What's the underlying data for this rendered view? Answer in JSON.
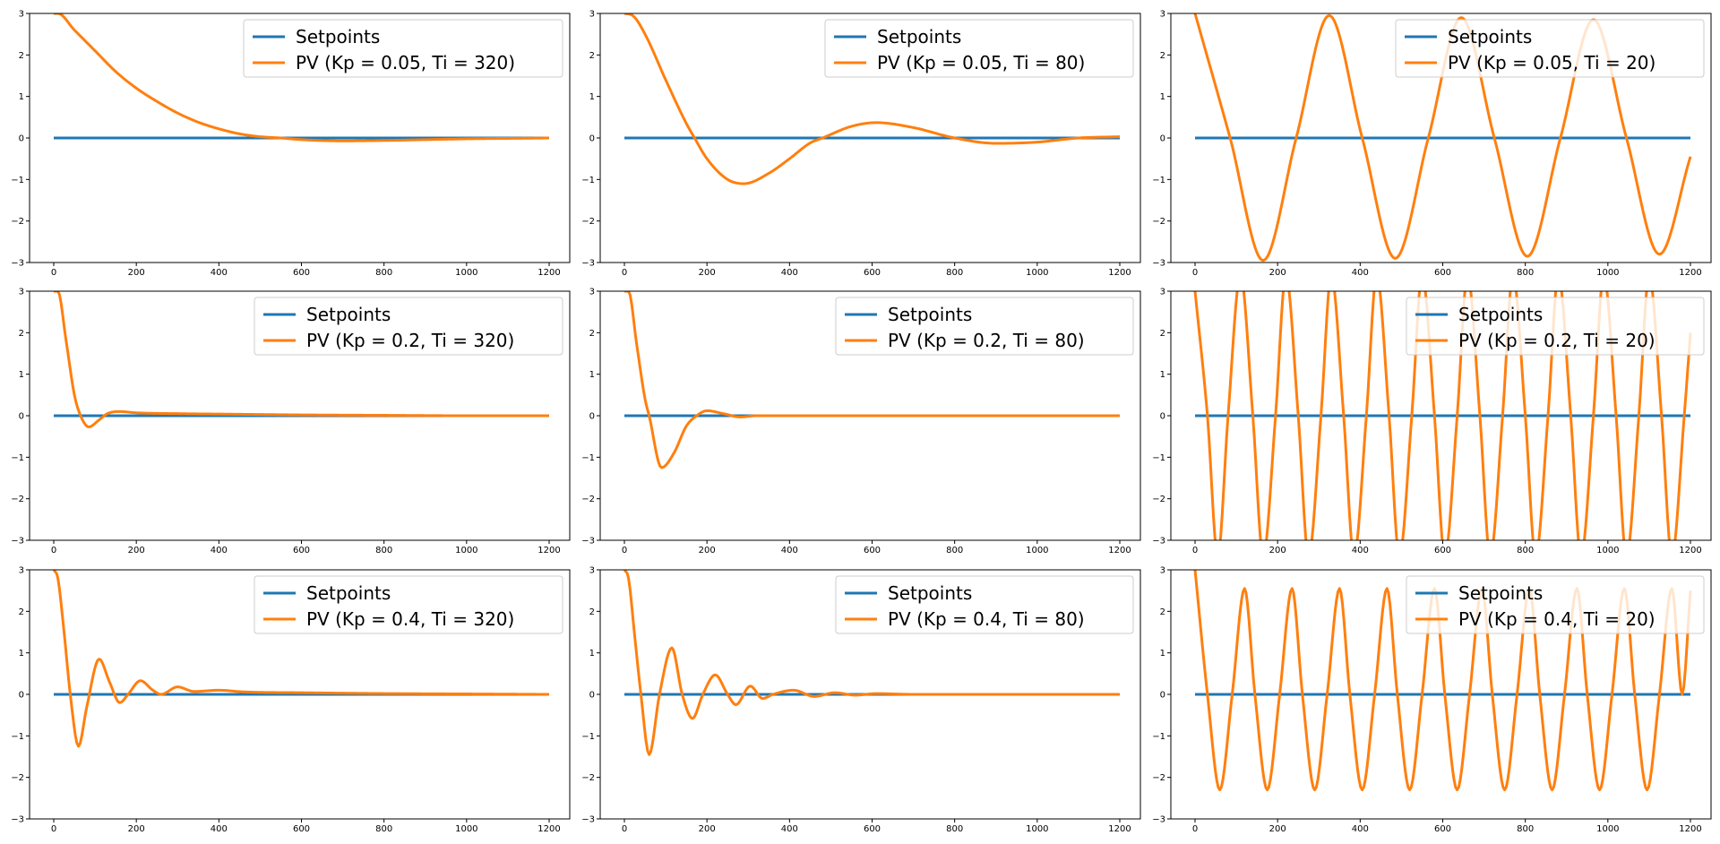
{
  "colors": {
    "setpoint": "#1f77b4",
    "pv": "#ff7f0e",
    "axes": "#000000",
    "legend_border": "#cccccc"
  },
  "chart_data": [
    {
      "type": "line",
      "title": "",
      "xlabel": "",
      "ylabel": "",
      "xlim": [
        0,
        1200
      ],
      "ylim": [
        -3,
        3
      ],
      "xticks": [
        0,
        200,
        400,
        600,
        800,
        1000,
        1200
      ],
      "yticks": [
        -3,
        -2,
        -1,
        0,
        1,
        2,
        3
      ],
      "grid": false,
      "legend": "top-right",
      "kp": 0.05,
      "ti": 320,
      "series": [
        {
          "name": "Setpoints",
          "x": [
            0,
            1200
          ],
          "y": [
            0,
            0
          ]
        },
        {
          "name": "PV (Kp = 0.05, Ti = 320)",
          "x": [
            0,
            10,
            50,
            100,
            150,
            200,
            250,
            300,
            350,
            400,
            450,
            500,
            550,
            600,
            700,
            800,
            900,
            1000,
            1100,
            1200
          ],
          "y": [
            3.0,
            3.0,
            2.6,
            2.1,
            1.6,
            1.2,
            0.88,
            0.6,
            0.38,
            0.22,
            0.1,
            0.03,
            0.0,
            -0.04,
            -0.07,
            -0.06,
            -0.04,
            -0.02,
            -0.01,
            0.0
          ]
        }
      ]
    },
    {
      "type": "line",
      "title": "",
      "xlabel": "",
      "ylabel": "",
      "xlim": [
        0,
        1200
      ],
      "ylim": [
        -3,
        3
      ],
      "xticks": [
        0,
        200,
        400,
        600,
        800,
        1000,
        1200
      ],
      "yticks": [
        -3,
        -2,
        -1,
        0,
        1,
        2,
        3
      ],
      "grid": false,
      "legend": "top-right",
      "kp": 0.05,
      "ti": 80,
      "series": [
        {
          "name": "Setpoints",
          "x": [
            0,
            1200
          ],
          "y": [
            0,
            0
          ]
        },
        {
          "name": "PV (Kp = 0.05, Ti = 80)",
          "x": [
            0,
            20,
            50,
            100,
            150,
            170,
            200,
            250,
            290,
            350,
            400,
            450,
            480,
            550,
            610,
            700,
            800,
            900,
            1000,
            1100,
            1200
          ],
          "y": [
            3.0,
            2.95,
            2.5,
            1.4,
            0.35,
            0.0,
            -0.5,
            -1.0,
            -1.1,
            -0.85,
            -0.5,
            -0.12,
            0.0,
            0.28,
            0.37,
            0.25,
            0.0,
            -0.13,
            -0.1,
            0.0,
            0.03
          ]
        }
      ]
    },
    {
      "type": "line",
      "title": "",
      "xlabel": "",
      "ylabel": "",
      "xlim": [
        0,
        1200
      ],
      "ylim": [
        -3,
        3
      ],
      "xticks": [
        0,
        200,
        400,
        600,
        800,
        1000,
        1200
      ],
      "yticks": [
        -3,
        -2,
        -1,
        0,
        1,
        2,
        3
      ],
      "grid": false,
      "legend": "top-right",
      "kp": 0.05,
      "ti": 20,
      "series": [
        {
          "name": "Setpoints",
          "x": [
            0,
            1200
          ],
          "y": [
            0,
            0
          ]
        },
        {
          "name": "PV (Kp = 0.05, Ti = 20)",
          "x": [
            0,
            85,
            165,
            245,
            325,
            405,
            485,
            565,
            645,
            725,
            805,
            885,
            965,
            1045,
            1125,
            1200
          ],
          "y": [
            3.0,
            0.0,
            -2.95,
            0.0,
            2.95,
            0.0,
            -2.9,
            0.0,
            2.9,
            0.0,
            -2.85,
            0.0,
            2.85,
            0.0,
            -2.8,
            -0.45
          ]
        }
      ]
    },
    {
      "type": "line",
      "title": "",
      "xlabel": "",
      "ylabel": "",
      "xlim": [
        0,
        1200
      ],
      "ylim": [
        -3,
        3
      ],
      "xticks": [
        0,
        200,
        400,
        600,
        800,
        1000,
        1200
      ],
      "yticks": [
        -3,
        -2,
        -1,
        0,
        1,
        2,
        3
      ],
      "grid": false,
      "legend": "top-right",
      "kp": 0.2,
      "ti": 320,
      "series": [
        {
          "name": "Setpoints",
          "x": [
            0,
            1200
          ],
          "y": [
            0,
            0
          ]
        },
        {
          "name": "PV (Kp = 0.2, Ti = 320)",
          "x": [
            0,
            10,
            30,
            50,
            65,
            85,
            110,
            130,
            160,
            200,
            300,
            400,
            600,
            800,
            1000,
            1200
          ],
          "y": [
            3.0,
            3.0,
            1.8,
            0.5,
            0.0,
            -0.27,
            -0.1,
            0.05,
            0.1,
            0.07,
            0.05,
            0.04,
            0.02,
            0.01,
            0.0,
            0.0
          ]
        }
      ]
    },
    {
      "type": "line",
      "title": "",
      "xlabel": "",
      "ylabel": "",
      "xlim": [
        0,
        1200
      ],
      "ylim": [
        -3,
        3
      ],
      "xticks": [
        0,
        200,
        400,
        600,
        800,
        1000,
        1200
      ],
      "yticks": [
        -3,
        -2,
        -1,
        0,
        1,
        2,
        3
      ],
      "grid": false,
      "legend": "top-right",
      "kp": 0.2,
      "ti": 80,
      "series": [
        {
          "name": "Setpoints",
          "x": [
            0,
            1200
          ],
          "y": [
            0,
            0
          ]
        },
        {
          "name": "PV (Kp = 0.2, Ti = 80)",
          "x": [
            0,
            10,
            30,
            50,
            60,
            90,
            120,
            150,
            175,
            200,
            240,
            280,
            320,
            400,
            600,
            800,
            1000,
            1200
          ],
          "y": [
            3.0,
            3.0,
            1.7,
            0.4,
            0.0,
            -1.25,
            -0.9,
            -0.25,
            0.0,
            0.12,
            0.05,
            -0.03,
            0.0,
            0.0,
            0.0,
            0.0,
            0.0,
            0.0
          ]
        }
      ]
    },
    {
      "type": "line",
      "title": "",
      "xlabel": "",
      "ylabel": "",
      "xlim": [
        0,
        1200
      ],
      "ylim": [
        -3,
        3
      ],
      "xticks": [
        0,
        200,
        400,
        600,
        800,
        1000,
        1200
      ],
      "yticks": [
        -3,
        -2,
        -1,
        0,
        1,
        2,
        3
      ],
      "grid": false,
      "legend": "top-right",
      "kp": 0.2,
      "ti": 20,
      "series": [
        {
          "name": "Setpoints",
          "x": [
            0,
            1200
          ],
          "y": [
            0,
            0
          ]
        },
        {
          "name": "PV (Kp = 0.2, Ti = 20)",
          "x": [
            0,
            30,
            55,
            80,
            110,
            140,
            165,
            195,
            220,
            250,
            275,
            305,
            330,
            360,
            385,
            415,
            440,
            470,
            495,
            525,
            550,
            580,
            605,
            635,
            660,
            690,
            715,
            745,
            770,
            800,
            825,
            855,
            880,
            910,
            935,
            965,
            990,
            1020,
            1045,
            1075,
            1100,
            1130,
            1155,
            1185,
            1200
          ],
          "y": [
            3.0,
            0.0,
            -3.4,
            0.0,
            3.4,
            0.0,
            -3.4,
            0.0,
            3.4,
            0.0,
            -3.4,
            0.0,
            3.4,
            0.0,
            -3.4,
            0.0,
            3.4,
            0.0,
            -3.4,
            0.0,
            3.4,
            0.0,
            -3.4,
            0.0,
            3.4,
            0.0,
            -3.4,
            0.0,
            3.4,
            0.0,
            -3.4,
            0.0,
            3.4,
            0.0,
            -3.4,
            0.0,
            3.4,
            0.0,
            -3.4,
            0.0,
            3.4,
            0.0,
            -3.4,
            0.0,
            2.0
          ]
        }
      ]
    },
    {
      "type": "line",
      "title": "",
      "xlabel": "",
      "ylabel": "",
      "xlim": [
        0,
        1200
      ],
      "ylim": [
        -3,
        3
      ],
      "xticks": [
        0,
        200,
        400,
        600,
        800,
        1000,
        1200
      ],
      "yticks": [
        -3,
        -2,
        -1,
        0,
        1,
        2,
        3
      ],
      "grid": false,
      "legend": "top-right",
      "kp": 0.4,
      "ti": 320,
      "series": [
        {
          "name": "Setpoints",
          "x": [
            0,
            1200
          ],
          "y": [
            0,
            0
          ]
        },
        {
          "name": "PV (Kp = 0.4, Ti = 320)",
          "x": [
            0,
            10,
            25,
            40,
            60,
            80,
            110,
            135,
            160,
            180,
            210,
            240,
            260,
            300,
            340,
            400,
            460,
            600,
            800,
            1000,
            1200
          ],
          "y": [
            3.0,
            2.8,
            1.5,
            0.0,
            -1.25,
            -0.3,
            0.85,
            0.3,
            -0.2,
            0.0,
            0.33,
            0.1,
            0.0,
            0.18,
            0.07,
            0.1,
            0.06,
            0.04,
            0.02,
            0.01,
            0.0
          ]
        }
      ]
    },
    {
      "type": "line",
      "title": "",
      "xlabel": "",
      "ylabel": "",
      "xlim": [
        0,
        1200
      ],
      "ylim": [
        -3,
        3
      ],
      "xticks": [
        0,
        200,
        400,
        600,
        800,
        1000,
        1200
      ],
      "yticks": [
        -3,
        -2,
        -1,
        0,
        1,
        2,
        3
      ],
      "grid": false,
      "legend": "top-right",
      "kp": 0.4,
      "ti": 80,
      "series": [
        {
          "name": "Setpoints",
          "x": [
            0,
            1200
          ],
          "y": [
            0,
            0
          ]
        },
        {
          "name": "PV (Kp = 0.4, Ti = 80)",
          "x": [
            0,
            10,
            25,
            40,
            60,
            85,
            115,
            140,
            165,
            190,
            220,
            250,
            270,
            305,
            335,
            360,
            410,
            460,
            510,
            560,
            610,
            700,
            800,
            1000,
            1200
          ],
          "y": [
            3.0,
            2.8,
            1.4,
            0.0,
            -1.45,
            0.0,
            1.12,
            0.0,
            -0.58,
            0.0,
            0.47,
            0.0,
            -0.25,
            0.2,
            -0.1,
            0.0,
            0.1,
            -0.05,
            0.04,
            -0.02,
            0.02,
            0.0,
            0.0,
            0.0,
            0.0
          ]
        }
      ]
    },
    {
      "type": "line",
      "title": "",
      "xlabel": "",
      "ylabel": "",
      "xlim": [
        0,
        1200
      ],
      "ylim": [
        -3,
        3
      ],
      "xticks": [
        0,
        200,
        400,
        600,
        800,
        1000,
        1200
      ],
      "yticks": [
        -3,
        -2,
        -1,
        0,
        1,
        2,
        3
      ],
      "grid": false,
      "legend": "top-right",
      "kp": 0.4,
      "ti": 20,
      "series": [
        {
          "name": "Setpoints",
          "x": [
            0,
            1200
          ],
          "y": [
            0,
            0
          ]
        },
        {
          "name": "PV (Kp = 0.4, Ti = 20)",
          "x": [
            0,
            30,
            60,
            90,
            120,
            145,
            175,
            205,
            235,
            260,
            290,
            320,
            350,
            375,
            405,
            435,
            465,
            490,
            520,
            550,
            580,
            605,
            635,
            665,
            695,
            720,
            750,
            780,
            810,
            835,
            865,
            895,
            925,
            950,
            980,
            1010,
            1040,
            1065,
            1095,
            1125,
            1155,
            1180,
            1200
          ],
          "y": [
            3.0,
            0.0,
            -2.3,
            0.0,
            2.55,
            0.0,
            -2.3,
            0.0,
            2.55,
            0.0,
            -2.3,
            0.0,
            2.55,
            0.0,
            -2.3,
            0.0,
            2.55,
            0.0,
            -2.3,
            0.0,
            2.55,
            0.0,
            -2.3,
            0.0,
            2.55,
            0.0,
            -2.3,
            0.0,
            2.55,
            0.0,
            -2.3,
            0.0,
            2.55,
            0.0,
            -2.3,
            0.0,
            2.55,
            0.0,
            -2.3,
            0.0,
            2.55,
            0.0,
            2.5
          ]
        }
      ]
    }
  ]
}
